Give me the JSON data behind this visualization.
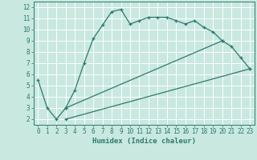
{
  "line1_x": [
    0,
    1,
    2,
    3,
    4,
    5,
    6,
    7,
    8,
    9,
    10,
    11,
    12,
    13,
    14,
    15,
    16,
    17,
    18,
    19,
    20,
    21,
    22,
    23
  ],
  "line1_y": [
    5.5,
    3.0,
    2.0,
    3.0,
    4.6,
    7.0,
    9.2,
    10.4,
    11.6,
    11.8,
    10.5,
    10.8,
    11.1,
    11.1,
    11.1,
    10.8,
    10.5,
    10.8,
    10.2,
    9.8,
    9.0,
    8.5,
    7.5,
    6.5
  ],
  "line2_x": [
    3,
    20
  ],
  "line2_y": [
    3.0,
    9.0
  ],
  "line3_x": [
    3,
    23
  ],
  "line3_y": [
    2.0,
    6.5
  ],
  "color": "#2d7a6e",
  "bg_color": "#c8e8e0",
  "grid_color": "#b0d8d0",
  "xlabel": "Humidex (Indice chaleur)",
  "xlim": [
    -0.5,
    23.5
  ],
  "ylim": [
    1.5,
    12.5
  ],
  "xticks": [
    0,
    1,
    2,
    3,
    4,
    5,
    6,
    7,
    8,
    9,
    10,
    11,
    12,
    13,
    14,
    15,
    16,
    17,
    18,
    19,
    20,
    21,
    22,
    23
  ],
  "yticks": [
    2,
    3,
    4,
    5,
    6,
    7,
    8,
    9,
    10,
    11,
    12
  ],
  "label_fontsize": 6.5,
  "tick_fontsize": 5.5
}
